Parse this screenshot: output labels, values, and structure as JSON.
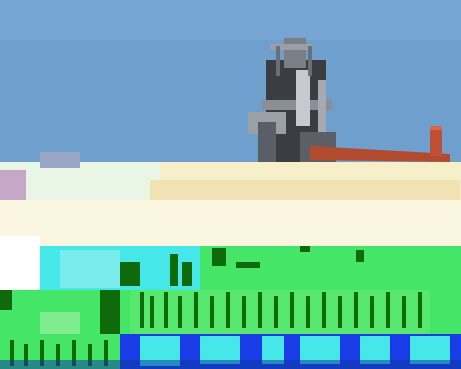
{
  "image": {
    "type": "photo-with-corruption-artifacts",
    "subject": "blast-furnace-industrial-structure",
    "colors": {
      "sky": "#6f9fcc",
      "sky_light": "#86b2db",
      "structure_dark": "#3b3d43",
      "structure_mid": "#7a7f86",
      "pipe_rust": "#b14a2f",
      "pipe_highlight": "#d46a4a",
      "glitch_cream": "#f6efc9",
      "glitch_pale": "#e9f6e6",
      "glitch_cyan": "#46e7e9",
      "glitch_green": "#45e667",
      "glitch_dark_green": "#0f6a0c",
      "glitch_blue": "#1a3ce6",
      "glitch_white": "#ffffff"
    }
  }
}
